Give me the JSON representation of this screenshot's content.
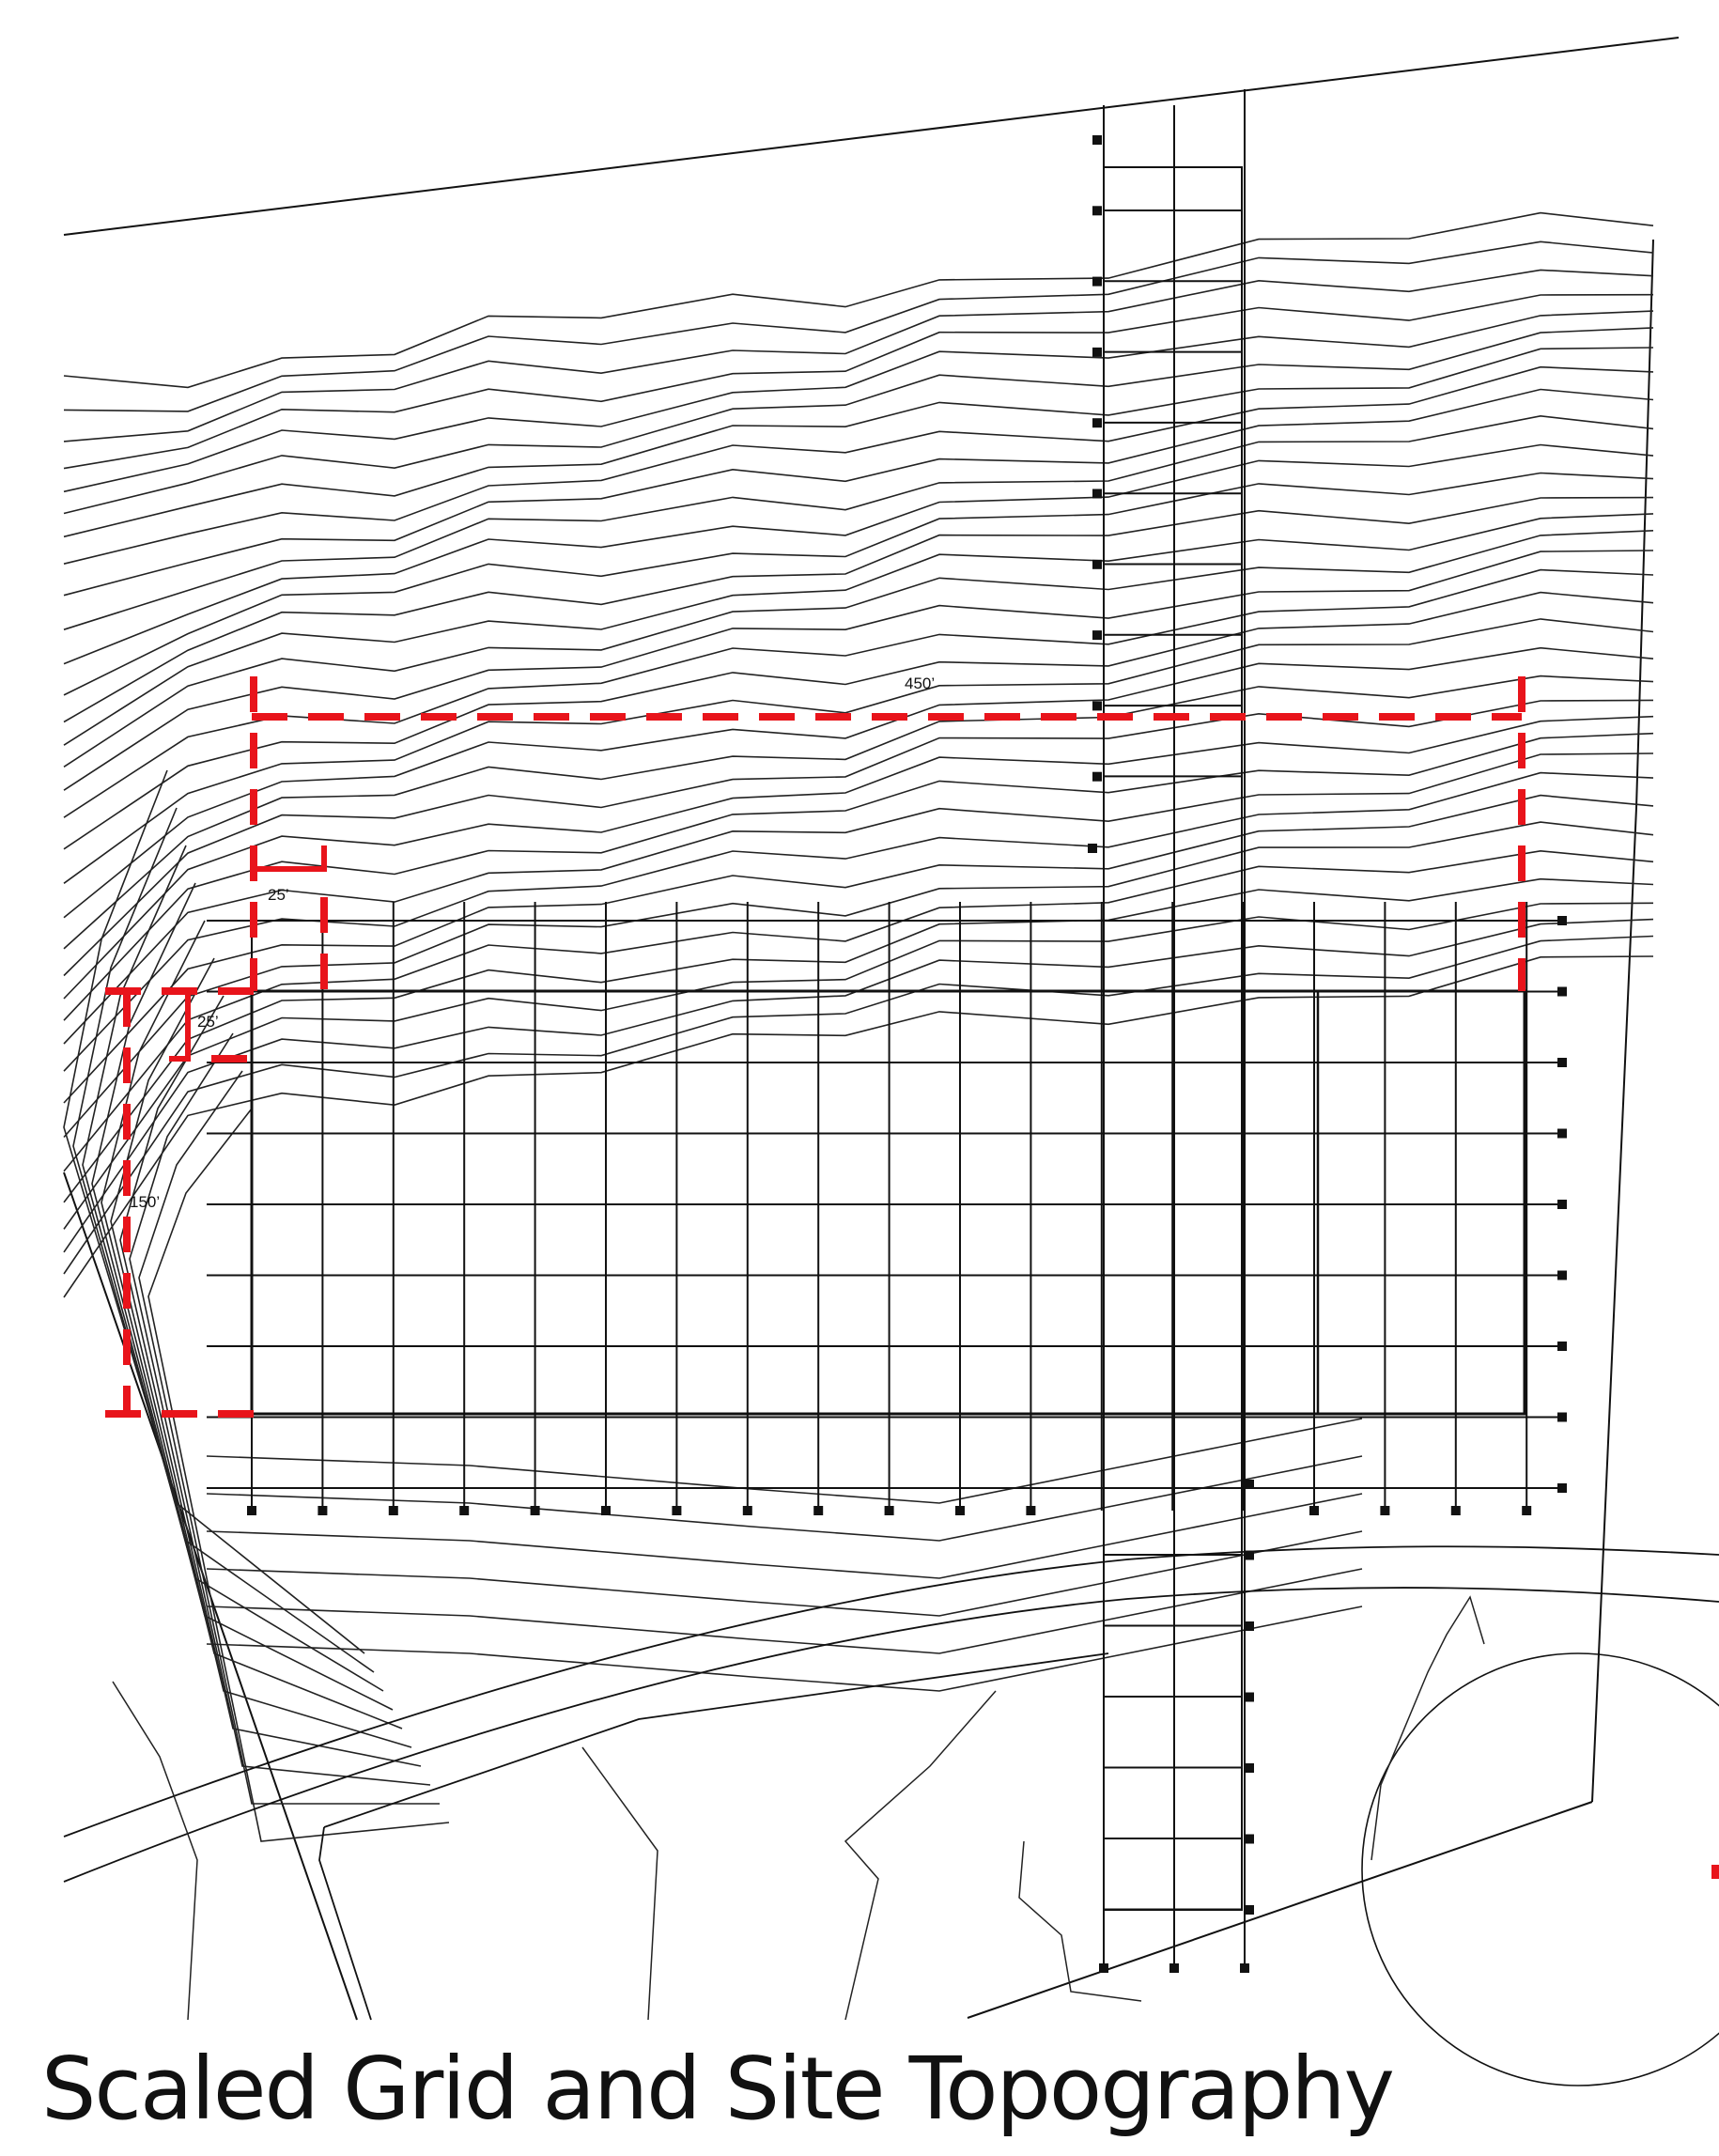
{
  "caption": "Scaled Grid and Site Topography",
  "dimensions": {
    "top_width": "450’",
    "setback_top": "25’",
    "setback_left": "25’",
    "left_depth": "150’"
  },
  "colors": {
    "line": "#111111",
    "setback": "#e8141b",
    "background": "#ffffff"
  }
}
